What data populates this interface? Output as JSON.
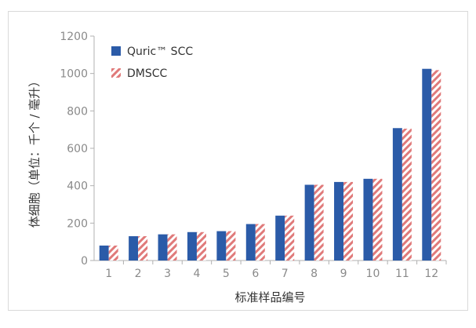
{
  "chart_data": {
    "type": "bar",
    "title": "",
    "xlabel": "标准样品编号",
    "ylabel": "体细胞（单位：千个 / 毫升）",
    "ylim": [
      0,
      1200
    ],
    "yticks": [
      "0",
      "200",
      "400",
      "600",
      "800",
      "1000",
      "1200"
    ],
    "categories": [
      "1",
      "2",
      "3",
      "4",
      "5",
      "6",
      "7",
      "8",
      "9",
      "10",
      "11",
      "12"
    ],
    "series": [
      {
        "name": "Quric™ SCC",
        "values": [
          80,
          130,
          140,
          152,
          157,
          195,
          240,
          405,
          420,
          437,
          708,
          1025
        ]
      },
      {
        "name": "DMSCC",
        "values": [
          80,
          130,
          140,
          152,
          157,
          195,
          240,
          405,
          420,
          437,
          705,
          1018
        ]
      }
    ],
    "legend_position": "top-left",
    "grid": false,
    "colors": {
      "Quric™ SCC": "#2b5ba8",
      "DMSCC_stripe": "#e07a7a",
      "axis": "#b0b0b0",
      "tick_text": "#8a8a8a"
    }
  }
}
